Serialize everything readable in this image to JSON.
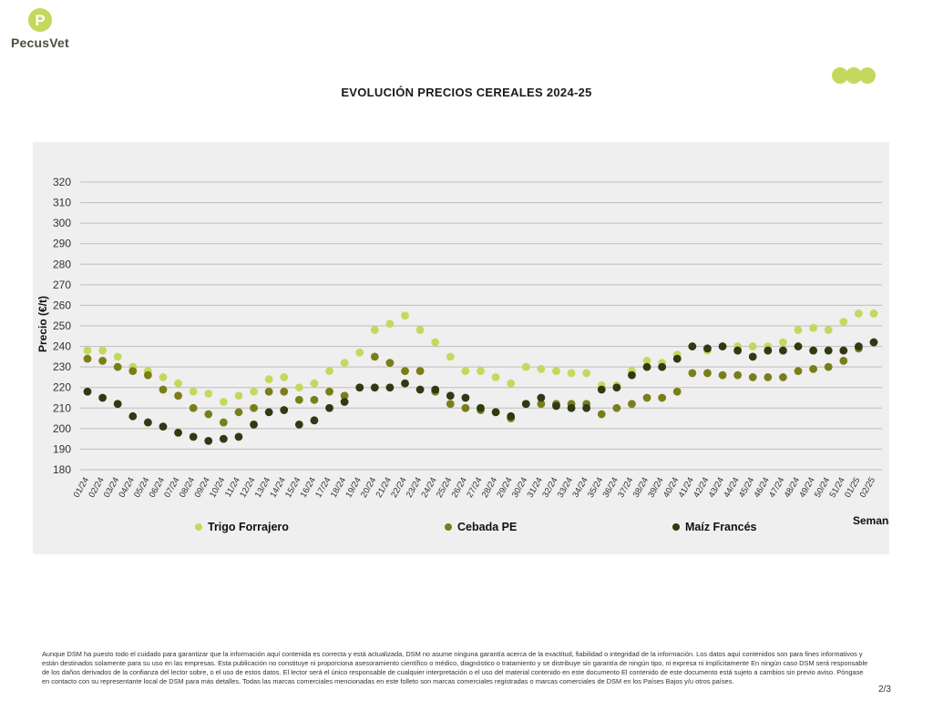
{
  "brand": {
    "name": "PecusVet",
    "mark_letter": "P",
    "icon": "pecusvet-logo-icon"
  },
  "colors": {
    "trigo": "#c3d95e",
    "cebada": "#7a7e1a",
    "maiz": "#2e3a12",
    "grid": "#bdbdbd",
    "panel": "#efefef",
    "brand_green": "#c3d95e"
  },
  "decor": {
    "icon": "three-dots-decoration-icon"
  },
  "chart_data": {
    "type": "scatter",
    "title": "EVOLUCIÓN PRECIOS CEREALES 2024-25",
    "ylabel": "Precio (€/t)",
    "xlabel": "Semana",
    "ylim": [
      180,
      320
    ],
    "yticks": [
      180,
      190,
      200,
      210,
      220,
      230,
      240,
      250,
      260,
      270,
      280,
      290,
      300,
      310,
      320
    ],
    "grid": true,
    "legend_position": "bottom",
    "categories": [
      "01/24",
      "02/24",
      "03/24",
      "04/24",
      "05/24",
      "06/24",
      "07/24",
      "08/24",
      "09/24",
      "10/24",
      "11/24",
      "12/24",
      "13/24",
      "14/24",
      "15/24",
      "16/24",
      "17/24",
      "18/24",
      "19/24",
      "20/24",
      "21/24",
      "22/24",
      "23/24",
      "24/24",
      "25/24",
      "26/24",
      "27/24",
      "28/24",
      "29/24",
      "30/24",
      "31/24",
      "32/24",
      "33/24",
      "34/24",
      "35/24",
      "36/24",
      "37/24",
      "38/24",
      "39/24",
      "40/24",
      "41/24",
      "42/24",
      "43/24",
      "44/24",
      "45/24",
      "46/24",
      "47/24",
      "48/24",
      "49/24",
      "50/24",
      "51/24",
      "01/25",
      "02/25"
    ],
    "series": [
      {
        "name": "Trigo Forrajero",
        "color_key": "trigo",
        "values": [
          238,
          238,
          235,
          230,
          228,
          225,
          222,
          218,
          217,
          213,
          216,
          218,
          224,
          225,
          220,
          222,
          228,
          232,
          237,
          248,
          251,
          255,
          248,
          242,
          235,
          228,
          228,
          225,
          222,
          230,
          229,
          228,
          227,
          227,
          221,
          221,
          228,
          233,
          232,
          236,
          240,
          238,
          240,
          240,
          240,
          240,
          242,
          248,
          249,
          248,
          252,
          256,
          256
        ]
      },
      {
        "name": "Cebada PE",
        "color_key": "cebada",
        "values": [
          234,
          233,
          230,
          228,
          226,
          219,
          216,
          210,
          207,
          203,
          208,
          210,
          218,
          218,
          214,
          214,
          218,
          216,
          220,
          235,
          232,
          228,
          228,
          218,
          212,
          210,
          209,
          208,
          205,
          212,
          212,
          212,
          212,
          212,
          207,
          210,
          212,
          215,
          215,
          218,
          227,
          227,
          226,
          226,
          225,
          225,
          225,
          228,
          229,
          230,
          233,
          239,
          242
        ]
      },
      {
        "name": "Maíz Francés",
        "color_key": "maiz",
        "values": [
          218,
          215,
          212,
          206,
          203,
          201,
          198,
          196,
          194,
          195,
          196,
          202,
          208,
          209,
          202,
          204,
          210,
          213,
          220,
          220,
          220,
          222,
          219,
          219,
          216,
          215,
          210,
          208,
          206,
          212,
          215,
          211,
          210,
          210,
          219,
          220,
          226,
          230,
          230,
          234,
          240,
          239,
          240,
          238,
          235,
          238,
          238,
          240,
          238,
          238,
          238,
          240,
          242
        ]
      }
    ]
  },
  "disclaimer": "Aunque DSM ha puesto todo el cuidado para garantizar que la información aquí contenida es correcta y está actualizada, DSM no asume ninguna garantía acerca de la exactitud, fiabilidad o integridad de la información. Los datos aquí contenidos son para fines informativos y están destinados solamente para su uso en las empresas. Esta publicación no constituye ni proporciona asesoramiento científico o médico, diagnóstico o tratamiento y se distribuye sin garantía de ningún tipo, ni expresa ni implícitamente En ningún caso DSM será responsable de los daños derivados de la confianza del lector sobre, o el uso de estos datos. El lector será el único responsable de cualquier interpretación o el uso del material contenido en este documento El contenido de este documento está sujeto a cambios sin previo aviso. Póngase en contacto con su representante local de DSM para más detalles. Todas las marcas comerciales mencionadas en este folleto son marcas comerciales registradas o marcas comerciales de DSM en los Países Bajos y/u otros países.",
  "page_indicator": "2/3"
}
